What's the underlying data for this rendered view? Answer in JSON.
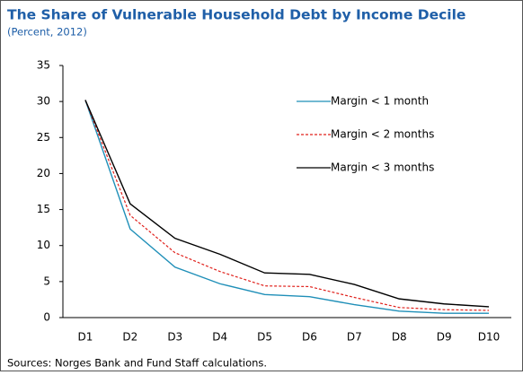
{
  "chart_data": {
    "type": "line",
    "title": "The Share of Vulnerable Household Debt by Income Decile",
    "subtitle": "(Percent, 2012)",
    "note": "Sources: Norges Bank and Fund Staff calculations.",
    "categories": [
      "D1",
      "D2",
      "D3",
      "D4",
      "D5",
      "D6",
      "D7",
      "D8",
      "D9",
      "D10"
    ],
    "series": [
      {
        "name": "Margin < 1 month",
        "color": "#1f8fb8",
        "dashed": false,
        "values": [
          30.2,
          12.3,
          7.0,
          4.7,
          3.2,
          2.9,
          1.8,
          0.9,
          0.6,
          0.6
        ]
      },
      {
        "name": "Margin < 2 months",
        "color": "#e0201b",
        "dashed": true,
        "values": [
          30.2,
          14.2,
          9.0,
          6.4,
          4.4,
          4.3,
          2.8,
          1.4,
          1.1,
          1.0
        ]
      },
      {
        "name": "Margin < 3 months",
        "color": "#000000",
        "dashed": false,
        "values": [
          30.2,
          15.8,
          11.0,
          8.8,
          6.2,
          6.0,
          4.6,
          2.6,
          1.9,
          1.5
        ]
      }
    ],
    "ylim": [
      0,
      35
    ],
    "yticks": [
      0,
      5,
      10,
      15,
      20,
      25,
      30,
      35
    ],
    "grid": false,
    "legend": "upper right"
  }
}
